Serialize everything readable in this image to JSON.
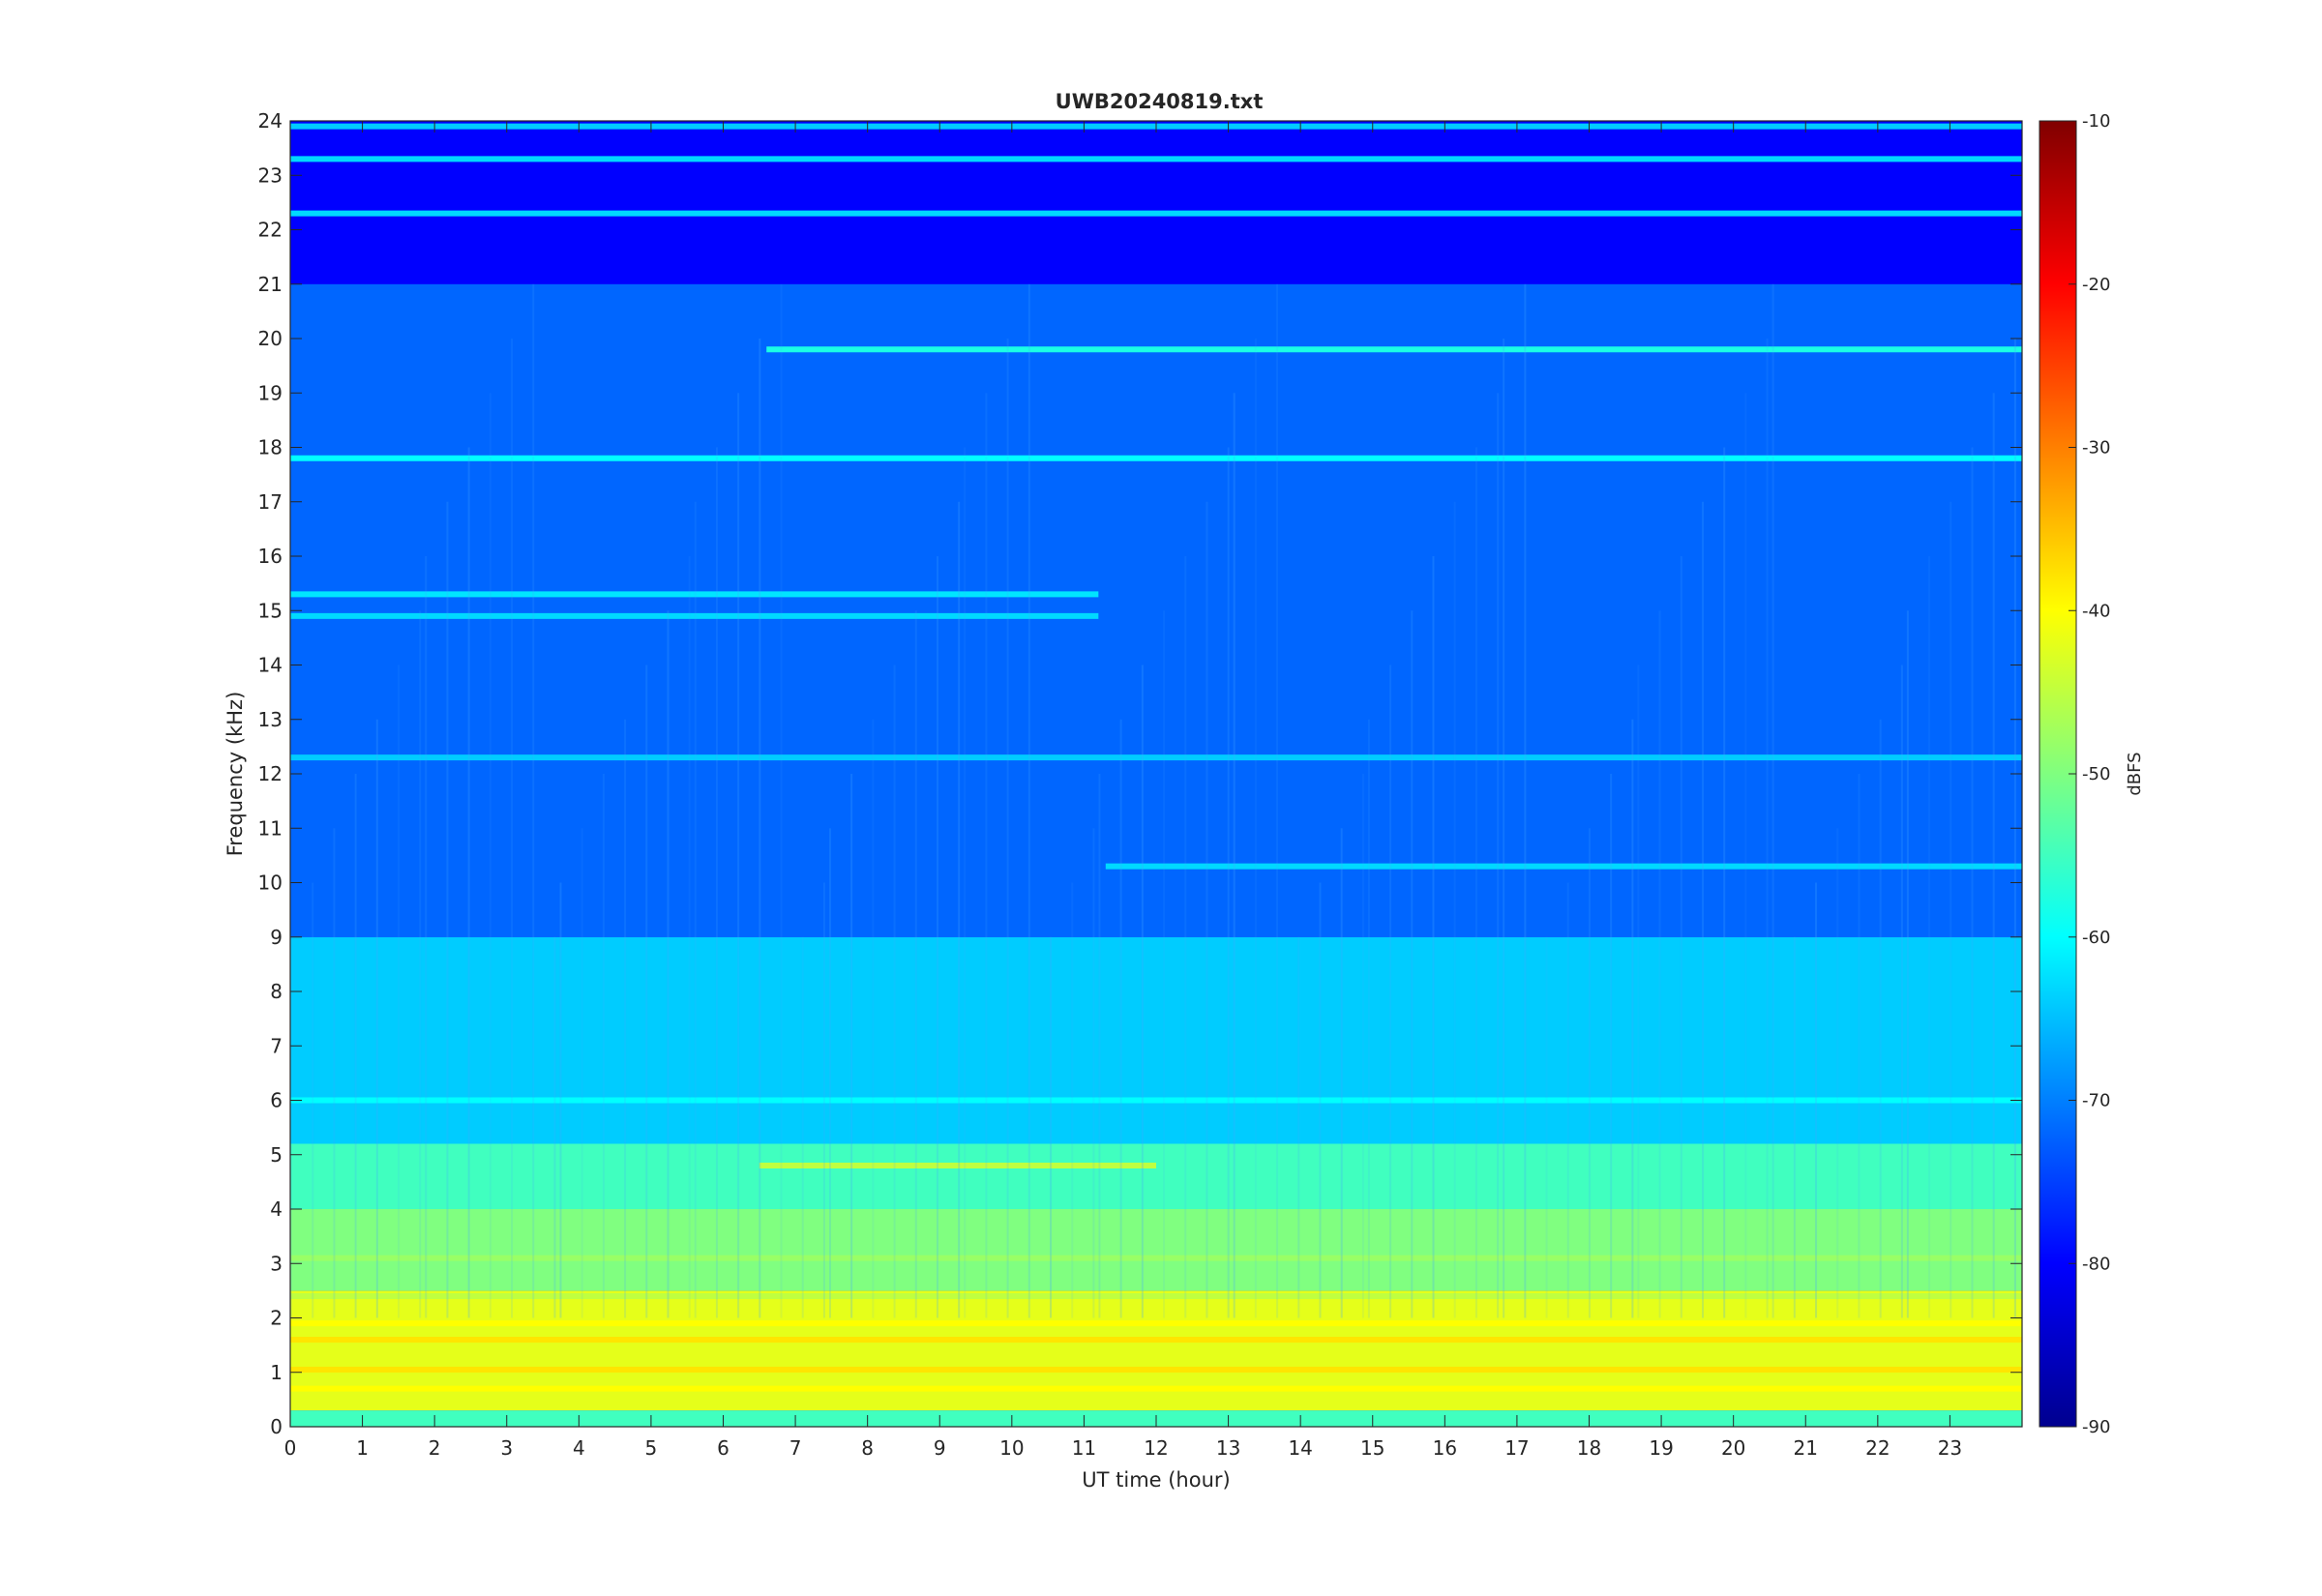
{
  "chart_data": {
    "type": "heatmap",
    "title": "UWB20240819.txt",
    "xlabel": "UT time (hour)",
    "ylabel": "Frequency (kHz)",
    "xlim": [
      0,
      24
    ],
    "ylim": [
      0,
      24
    ],
    "x_ticks": [
      0,
      1,
      2,
      3,
      4,
      5,
      6,
      7,
      8,
      9,
      10,
      11,
      12,
      13,
      14,
      15,
      16,
      17,
      18,
      19,
      20,
      21,
      22,
      23
    ],
    "y_ticks": [
      0,
      1,
      2,
      3,
      4,
      5,
      6,
      7,
      8,
      9,
      10,
      11,
      12,
      13,
      14,
      15,
      16,
      17,
      18,
      19,
      20,
      21,
      22,
      23,
      24
    ],
    "colorbar": {
      "label": "dBFS",
      "range": [
        -90,
        -10
      ],
      "ticks": [
        -90,
        -80,
        -70,
        -60,
        -50,
        -40,
        -30,
        -20,
        -10
      ],
      "colormap": "jet"
    },
    "background_levels_dbfs": [
      {
        "freq_range": [
          0,
          0.3
        ],
        "level": -55
      },
      {
        "freq_range": [
          0.3,
          2.5
        ],
        "level": -42
      },
      {
        "freq_range": [
          2.5,
          4.0
        ],
        "level": -50
      },
      {
        "freq_range": [
          4.0,
          5.2
        ],
        "level": -55
      },
      {
        "freq_range": [
          5.2,
          9.0
        ],
        "level": -64
      },
      {
        "freq_range": [
          9.0,
          21.0
        ],
        "level": -72
      },
      {
        "freq_range": [
          21.0,
          24.0
        ],
        "level": -80
      }
    ],
    "bands_dbfs": [
      {
        "freq": 0.7,
        "t_start": 0,
        "t_end": 24,
        "level": -40
      },
      {
        "freq": 1.05,
        "t_start": 0,
        "t_end": 24,
        "level": -38
      },
      {
        "freq": 1.6,
        "t_start": 0,
        "t_end": 24,
        "level": -38
      },
      {
        "freq": 1.9,
        "t_start": 0,
        "t_end": 24,
        "level": -40
      },
      {
        "freq": 2.4,
        "t_start": 0,
        "t_end": 24,
        "level": -45
      },
      {
        "freq": 3.1,
        "t_start": 0,
        "t_end": 24,
        "level": -48
      },
      {
        "freq": 3.6,
        "t_start": 0,
        "t_end": 24,
        "level": -50
      },
      {
        "freq": 4.8,
        "t_start": 6.5,
        "t_end": 12,
        "level": -45
      },
      {
        "freq": 6.0,
        "t_start": 0,
        "t_end": 24,
        "level": -60
      },
      {
        "freq": 10.3,
        "t_start": 11.3,
        "t_end": 24,
        "level": -63
      },
      {
        "freq": 12.3,
        "t_start": 0,
        "t_end": 24,
        "level": -64
      },
      {
        "freq": 15.3,
        "t_start": 0,
        "t_end": 11.2,
        "level": -62
      },
      {
        "freq": 14.9,
        "t_start": 0,
        "t_end": 11.2,
        "level": -63
      },
      {
        "freq": 17.8,
        "t_start": 0,
        "t_end": 24,
        "level": -60
      },
      {
        "freq": 19.8,
        "t_start": 6.6,
        "t_end": 24,
        "level": -58
      },
      {
        "freq": 22.3,
        "t_start": 0,
        "t_end": 24,
        "level": -63
      },
      {
        "freq": 23.3,
        "t_start": 0,
        "t_end": 24,
        "level": -63
      },
      {
        "freq": 23.9,
        "t_start": 0,
        "t_end": 24,
        "level": -64
      }
    ],
    "grid": false,
    "legend": "none"
  }
}
